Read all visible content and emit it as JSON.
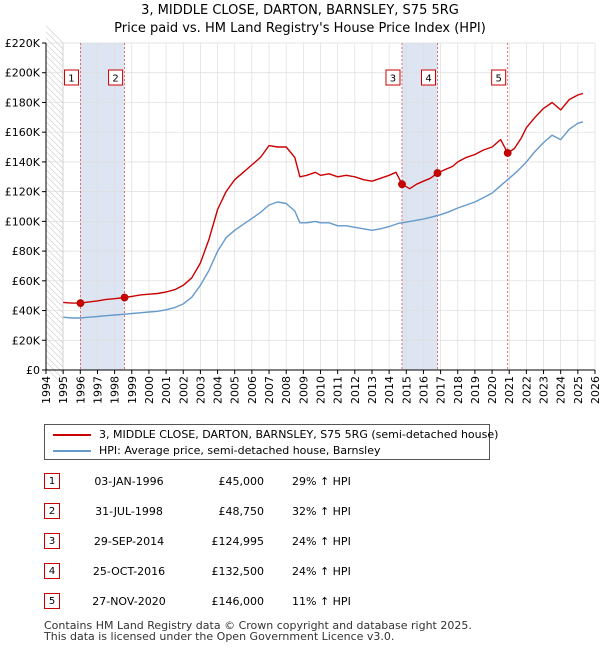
{
  "chart_data": {
    "type": "line",
    "title": "3, MIDDLE CLOSE, DARTON, BARNSLEY, S75 5RG",
    "subtitle": "Price paid vs. HM Land Registry's House Price Index (HPI)",
    "xlim": [
      1994,
      2026
    ],
    "ylim": [
      0,
      220000
    ],
    "x_ticks": [
      1994,
      1995,
      1996,
      1997,
      1998,
      1999,
      2000,
      2001,
      2002,
      2003,
      2004,
      2005,
      2006,
      2007,
      2008,
      2009,
      2010,
      2011,
      2012,
      2013,
      2014,
      2015,
      2016,
      2017,
      2018,
      2019,
      2020,
      2021,
      2022,
      2023,
      2024,
      2025,
      2026
    ],
    "y_ticks": [
      {
        "value": 0,
        "label": "£0"
      },
      {
        "value": 20000,
        "label": "£20K"
      },
      {
        "value": 40000,
        "label": "£40K"
      },
      {
        "value": 60000,
        "label": "£60K"
      },
      {
        "value": 80000,
        "label": "£80K"
      },
      {
        "value": 100000,
        "label": "£100K"
      },
      {
        "value": 120000,
        "label": "£120K"
      },
      {
        "value": 140000,
        "label": "£140K"
      },
      {
        "value": 160000,
        "label": "£160K"
      },
      {
        "value": 180000,
        "label": "£180K"
      },
      {
        "value": 200000,
        "label": "£200K"
      },
      {
        "value": 220000,
        "label": "£220K"
      }
    ],
    "data_start_year": 1995.0,
    "shaded_regions": [
      [
        1996.01,
        1998.58
      ],
      [
        2014.75,
        2016.82
      ]
    ],
    "series": [
      {
        "name": "3, MIDDLE CLOSE, DARTON, BARNSLEY, S75 5RG (semi-detached house)",
        "color": "#cc0000",
        "points": [
          [
            1995.0,
            45500
          ],
          [
            1995.5,
            45000
          ],
          [
            1996.01,
            45000
          ],
          [
            1996.5,
            45800
          ],
          [
            1997.0,
            46500
          ],
          [
            1997.5,
            47500
          ],
          [
            1998.0,
            48000
          ],
          [
            1998.58,
            48750
          ],
          [
            1999.0,
            49500
          ],
          [
            1999.5,
            50500
          ],
          [
            2000.0,
            51000
          ],
          [
            2000.5,
            51500
          ],
          [
            2001.0,
            52500
          ],
          [
            2001.5,
            54000
          ],
          [
            2002.0,
            57000
          ],
          [
            2002.5,
            62000
          ],
          [
            2003.0,
            72000
          ],
          [
            2003.5,
            88000
          ],
          [
            2004.0,
            108000
          ],
          [
            2004.5,
            120000
          ],
          [
            2005.0,
            128000
          ],
          [
            2005.5,
            133000
          ],
          [
            2006.0,
            138000
          ],
          [
            2006.5,
            143000
          ],
          [
            2007.0,
            151000
          ],
          [
            2007.5,
            150000
          ],
          [
            2008.0,
            150000
          ],
          [
            2008.5,
            143000
          ],
          [
            2008.8,
            130000
          ],
          [
            2009.2,
            131000
          ],
          [
            2009.7,
            133000
          ],
          [
            2010.0,
            131000
          ],
          [
            2010.5,
            132000
          ],
          [
            2011.0,
            130000
          ],
          [
            2011.5,
            131000
          ],
          [
            2012.0,
            130000
          ],
          [
            2012.5,
            128000
          ],
          [
            2013.0,
            127000
          ],
          [
            2013.5,
            129000
          ],
          [
            2014.0,
            131000
          ],
          [
            2014.4,
            133000
          ],
          [
            2014.75,
            124995
          ],
          [
            2015.2,
            122000
          ],
          [
            2015.6,
            125000
          ],
          [
            2016.0,
            127000
          ],
          [
            2016.4,
            129000
          ],
          [
            2016.82,
            132500
          ],
          [
            2017.3,
            135000
          ],
          [
            2017.7,
            137000
          ],
          [
            2018.0,
            140000
          ],
          [
            2018.5,
            143000
          ],
          [
            2019.0,
            145000
          ],
          [
            2019.5,
            148000
          ],
          [
            2020.0,
            150000
          ],
          [
            2020.5,
            155000
          ],
          [
            2020.91,
            146000
          ],
          [
            2021.3,
            149000
          ],
          [
            2021.7,
            156000
          ],
          [
            2022.0,
            163000
          ],
          [
            2022.5,
            170000
          ],
          [
            2023.0,
            176000
          ],
          [
            2023.5,
            180000
          ],
          [
            2024.0,
            175000
          ],
          [
            2024.5,
            182000
          ],
          [
            2025.0,
            185000
          ],
          [
            2025.3,
            186000
          ]
        ]
      },
      {
        "name": "HPI: Average price, semi-detached house, Barnsley",
        "color": "#6699cc",
        "points": [
          [
            1995.0,
            35500
          ],
          [
            1995.5,
            35000
          ],
          [
            1996.0,
            35000
          ],
          [
            1996.5,
            35500
          ],
          [
            1997.0,
            36000
          ],
          [
            1997.5,
            36500
          ],
          [
            1998.0,
            37000
          ],
          [
            1998.5,
            37500
          ],
          [
            1999.0,
            38000
          ],
          [
            1999.5,
            38500
          ],
          [
            2000.0,
            39000
          ],
          [
            2000.5,
            39500
          ],
          [
            2001.0,
            40500
          ],
          [
            2001.5,
            42000
          ],
          [
            2002.0,
            44500
          ],
          [
            2002.5,
            49000
          ],
          [
            2003.0,
            57000
          ],
          [
            2003.5,
            67000
          ],
          [
            2004.0,
            80000
          ],
          [
            2004.5,
            89000
          ],
          [
            2005.0,
            94000
          ],
          [
            2005.5,
            98000
          ],
          [
            2006.0,
            102000
          ],
          [
            2006.5,
            106000
          ],
          [
            2007.0,
            111000
          ],
          [
            2007.5,
            113000
          ],
          [
            2008.0,
            112000
          ],
          [
            2008.5,
            107000
          ],
          [
            2008.8,
            99000
          ],
          [
            2009.2,
            99000
          ],
          [
            2009.7,
            100000
          ],
          [
            2010.0,
            99000
          ],
          [
            2010.5,
            99000
          ],
          [
            2011.0,
            97000
          ],
          [
            2011.5,
            97000
          ],
          [
            2012.0,
            96000
          ],
          [
            2012.5,
            95000
          ],
          [
            2013.0,
            94000
          ],
          [
            2013.5,
            95000
          ],
          [
            2014.0,
            96500
          ],
          [
            2014.5,
            98500
          ],
          [
            2015.0,
            99500
          ],
          [
            2015.5,
            100500
          ],
          [
            2016.0,
            101500
          ],
          [
            2016.5,
            103000
          ],
          [
            2017.0,
            104500
          ],
          [
            2017.5,
            106500
          ],
          [
            2018.0,
            109000
          ],
          [
            2018.5,
            111000
          ],
          [
            2019.0,
            113000
          ],
          [
            2019.5,
            116000
          ],
          [
            2020.0,
            119000
          ],
          [
            2020.5,
            124000
          ],
          [
            2021.0,
            129000
          ],
          [
            2021.5,
            134000
          ],
          [
            2022.0,
            140000
          ],
          [
            2022.5,
            147000
          ],
          [
            2023.0,
            153000
          ],
          [
            2023.5,
            158000
          ],
          [
            2024.0,
            155000
          ],
          [
            2024.5,
            162000
          ],
          [
            2025.0,
            166000
          ],
          [
            2025.3,
            167000
          ]
        ]
      }
    ],
    "sales": [
      {
        "id": "1",
        "x": 1996.01,
        "price": 45000
      },
      {
        "id": "2",
        "x": 1998.58,
        "price": 48750
      },
      {
        "id": "3",
        "x": 2014.75,
        "price": 124995
      },
      {
        "id": "4",
        "x": 2016.82,
        "price": 132500
      },
      {
        "id": "5",
        "x": 2020.91,
        "price": 146000
      }
    ],
    "colors": {
      "property": "#cc0000",
      "hpi": "#6699cc",
      "shade": "#dde4f2",
      "grid": "#dddddd",
      "vline": "#e06060"
    }
  },
  "legend": {
    "property_label": "3, MIDDLE CLOSE, DARTON, BARNSLEY, S75 5RG (semi-detached house)",
    "hpi_label": "HPI: Average price, semi-detached house, Barnsley"
  },
  "sales_table": [
    {
      "num": "1",
      "date": "03-JAN-1996",
      "price": "£45,000",
      "hpi": "29% ↑ HPI"
    },
    {
      "num": "2",
      "date": "31-JUL-1998",
      "price": "£48,750",
      "hpi": "32% ↑ HPI"
    },
    {
      "num": "3",
      "date": "29-SEP-2014",
      "price": "£124,995",
      "hpi": "24% ↑ HPI"
    },
    {
      "num": "4",
      "date": "25-OCT-2016",
      "price": "£132,500",
      "hpi": "24% ↑ HPI"
    },
    {
      "num": "5",
      "date": "27-NOV-2020",
      "price": "£146,000",
      "hpi": "11% ↑ HPI"
    }
  ],
  "footer": {
    "line1": "Contains HM Land Registry data © Crown copyright and database right 2025.",
    "line2": "This data is licensed under the Open Government Licence v3.0."
  }
}
